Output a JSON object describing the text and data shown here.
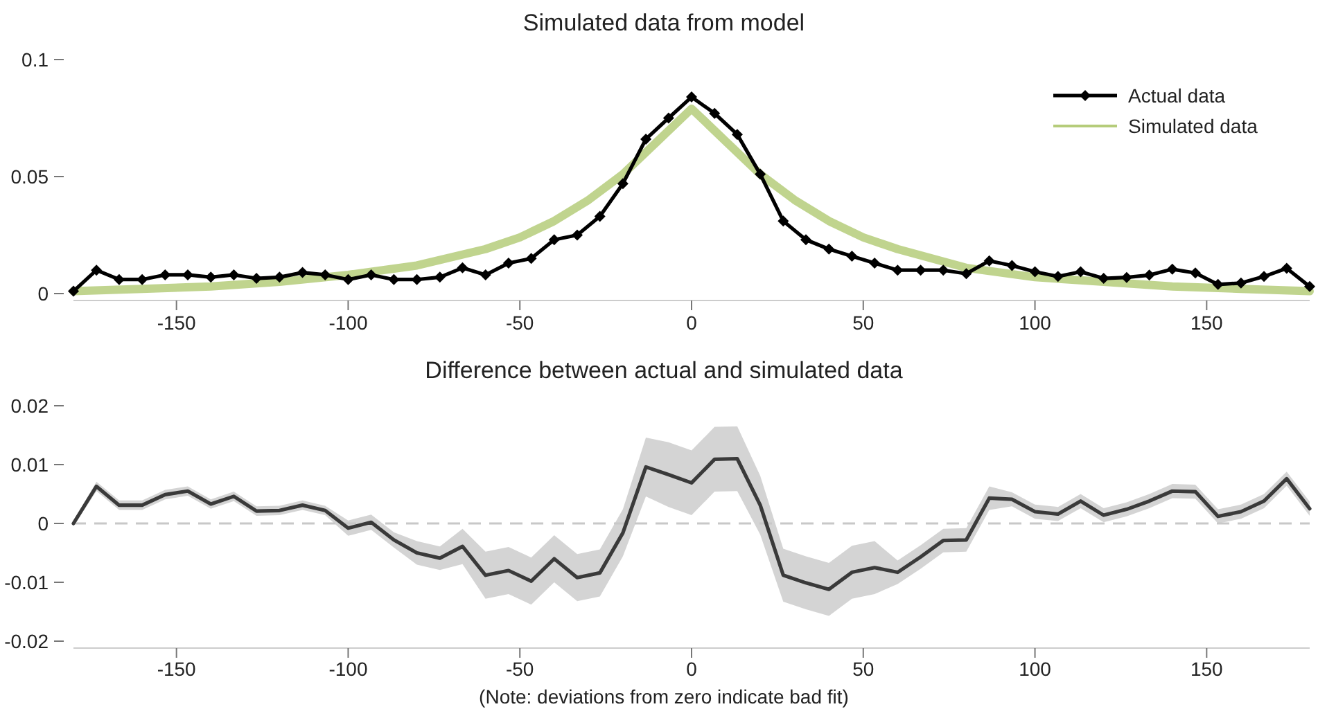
{
  "chart_data": [
    {
      "type": "line",
      "title": "Simulated data from model",
      "xlim": [
        -180,
        180
      ],
      "xticks": [
        -150,
        -100,
        -50,
        0,
        50,
        100,
        150
      ],
      "ylim": [
        0,
        0.1
      ],
      "yticks": [
        0,
        0.05,
        0.1
      ],
      "grid": false,
      "legend": "top right",
      "series": [
        {
          "name": "Actual data",
          "color": "#000000",
          "marker": "diamond",
          "x": [
            -180,
            -173.3,
            -166.7,
            -160,
            -153.3,
            -146.7,
            -140,
            -133.3,
            -126.7,
            -120,
            -113.3,
            -106.7,
            -100,
            -93.3,
            -86.7,
            -80,
            -73.3,
            -66.7,
            -60,
            -53.3,
            -46.7,
            -40,
            -33.3,
            -26.7,
            -20,
            -13.3,
            -6.7,
            0,
            6.7,
            13.3,
            20,
            26.7,
            33.3,
            40,
            46.7,
            53.3,
            60,
            66.7,
            73.3,
            80,
            86.7,
            93.3,
            100,
            106.7,
            113.3,
            120,
            126.7,
            133.3,
            140,
            146.7,
            153.3,
            160,
            166.7,
            173.3,
            180
          ],
          "values": [
            0.001,
            0.01,
            0.006,
            0.006,
            0.008,
            0.008,
            0.007,
            0.008,
            0.0065,
            0.007,
            0.009,
            0.008,
            0.006,
            0.008,
            0.006,
            0.006,
            0.007,
            0.011,
            0.008,
            0.013,
            0.015,
            0.023,
            0.025,
            0.033,
            0.047,
            0.066,
            0.075,
            0.084,
            0.077,
            0.068,
            0.051,
            0.031,
            0.023,
            0.019,
            0.016,
            0.013,
            0.01,
            0.01,
            0.01,
            0.0085,
            0.014,
            0.012,
            0.0093,
            0.0073,
            0.0093,
            0.0065,
            0.0069,
            0.0079,
            0.0104,
            0.0088,
            0.0039,
            0.0045,
            0.0073,
            0.0108,
            0.003
          ]
        },
        {
          "name": "Simulated data",
          "color": "#b5cc7a",
          "marker": "none",
          "x": [
            -180,
            -160,
            -140,
            -120,
            -100,
            -80,
            -60,
            -50,
            -40,
            -30,
            -20,
            -10,
            0,
            10,
            20,
            30,
            40,
            50,
            60,
            80,
            100,
            120,
            140,
            160,
            180
          ],
          "values": [
            0.001,
            0.002,
            0.003,
            0.005,
            0.008,
            0.012,
            0.019,
            0.024,
            0.031,
            0.04,
            0.051,
            0.065,
            0.079,
            0.065,
            0.051,
            0.04,
            0.031,
            0.024,
            0.019,
            0.011,
            0.007,
            0.005,
            0.003,
            0.002,
            0.001
          ]
        }
      ]
    },
    {
      "type": "line",
      "title": "Difference between actual and simulated data",
      "xlabel": "(Note: deviations from zero indicate bad fit)",
      "xlim": [
        -180,
        180
      ],
      "xticks": [
        -150,
        -100,
        -50,
        0,
        50,
        100,
        150
      ],
      "ylim": [
        -0.02,
        0.02
      ],
      "yticks": [
        -0.02,
        -0.01,
        0,
        0.01,
        0.02
      ],
      "grid": false,
      "legend": false,
      "ref_lines": [
        {
          "axis": "y",
          "value": 0,
          "color": "#c8c8c8",
          "line_style": "dashed"
        }
      ],
      "series": [
        {
          "color": "#3a3a3a",
          "marker": "none",
          "x": [
            -180,
            -173.3,
            -166.7,
            -160,
            -153.3,
            -146.7,
            -140,
            -133.3,
            -126.7,
            -120,
            -113.3,
            -106.7,
            -100,
            -93.3,
            -86.7,
            -80,
            -73.3,
            -66.7,
            -60,
            -53.3,
            -46.7,
            -40,
            -33.3,
            -26.7,
            -20,
            -13.3,
            -6.7,
            0,
            6.7,
            13.3,
            20,
            26.7,
            33.3,
            40,
            46.7,
            53.3,
            60,
            66.7,
            73.3,
            80,
            86.7,
            93.3,
            100,
            106.7,
            113.3,
            120,
            126.7,
            133.3,
            140,
            146.7,
            153.3,
            160,
            166.7,
            173.3,
            180
          ],
          "values": [
            0,
            0.0063,
            0.0031,
            0.0031,
            0.0049,
            0.0055,
            0.0033,
            0.0046,
            0.0021,
            0.0022,
            0.0031,
            0.0022,
            -0.0008,
            0.0002,
            -0.0028,
            -0.005,
            -0.0059,
            -0.0039,
            -0.0088,
            -0.008,
            -0.0098,
            -0.006,
            -0.0092,
            -0.0084,
            -0.0016,
            0.0096,
            0.0083,
            0.0069,
            0.0109,
            0.011,
            0.0031,
            -0.0088,
            -0.0101,
            -0.0112,
            -0.0083,
            -0.0075,
            -0.0083,
            -0.0057,
            -0.0029,
            -0.0028,
            0.0043,
            0.0041,
            0.002,
            0.0016,
            0.0038,
            0.0014,
            0.0024,
            0.0038,
            0.0055,
            0.0054,
            0.0012,
            0.002,
            0.0038,
            0.0076,
            0.0025
          ],
          "lower": [
            -0.0005,
            0.0055,
            0.0023,
            0.0023,
            0.0041,
            0.0047,
            0.0025,
            0.0038,
            0.0013,
            0.0014,
            0.0023,
            0.0014,
            -0.0021,
            -0.0011,
            -0.0041,
            -0.007,
            -0.0079,
            -0.0069,
            -0.0128,
            -0.012,
            -0.0138,
            -0.01,
            -0.0132,
            -0.0124,
            -0.0056,
            0.0046,
            0.0028,
            0.0014,
            0.0054,
            0.0055,
            -0.0019,
            -0.0133,
            -0.0146,
            -0.0157,
            -0.0128,
            -0.012,
            -0.0103,
            -0.0077,
            -0.0049,
            -0.0048,
            0.0023,
            0.0029,
            0.0008,
            0.0004,
            0.0026,
            0.0002,
            0.0012,
            0.0026,
            0.0043,
            0.0042,
            0.0,
            0.0008,
            0.0026,
            0.0064,
            0.0013
          ],
          "upper": [
            0.0005,
            0.0071,
            0.0039,
            0.0039,
            0.0057,
            0.0063,
            0.0041,
            0.0054,
            0.0029,
            0.003,
            0.0039,
            0.003,
            0.0005,
            0.0015,
            -0.0015,
            -0.003,
            -0.0039,
            -0.0009,
            -0.0048,
            -0.004,
            -0.0058,
            -0.002,
            -0.0052,
            -0.0044,
            0.0024,
            0.0146,
            0.0138,
            0.0124,
            0.0164,
            0.0165,
            0.0081,
            -0.0043,
            -0.0056,
            -0.0067,
            -0.0038,
            -0.003,
            -0.0063,
            -0.0037,
            -0.0009,
            -0.0008,
            0.0063,
            0.0053,
            0.0032,
            0.0028,
            0.005,
            0.0026,
            0.0036,
            0.005,
            0.0067,
            0.0066,
            0.0024,
            0.0032,
            0.005,
            0.0088,
            0.0037
          ]
        }
      ]
    }
  ]
}
